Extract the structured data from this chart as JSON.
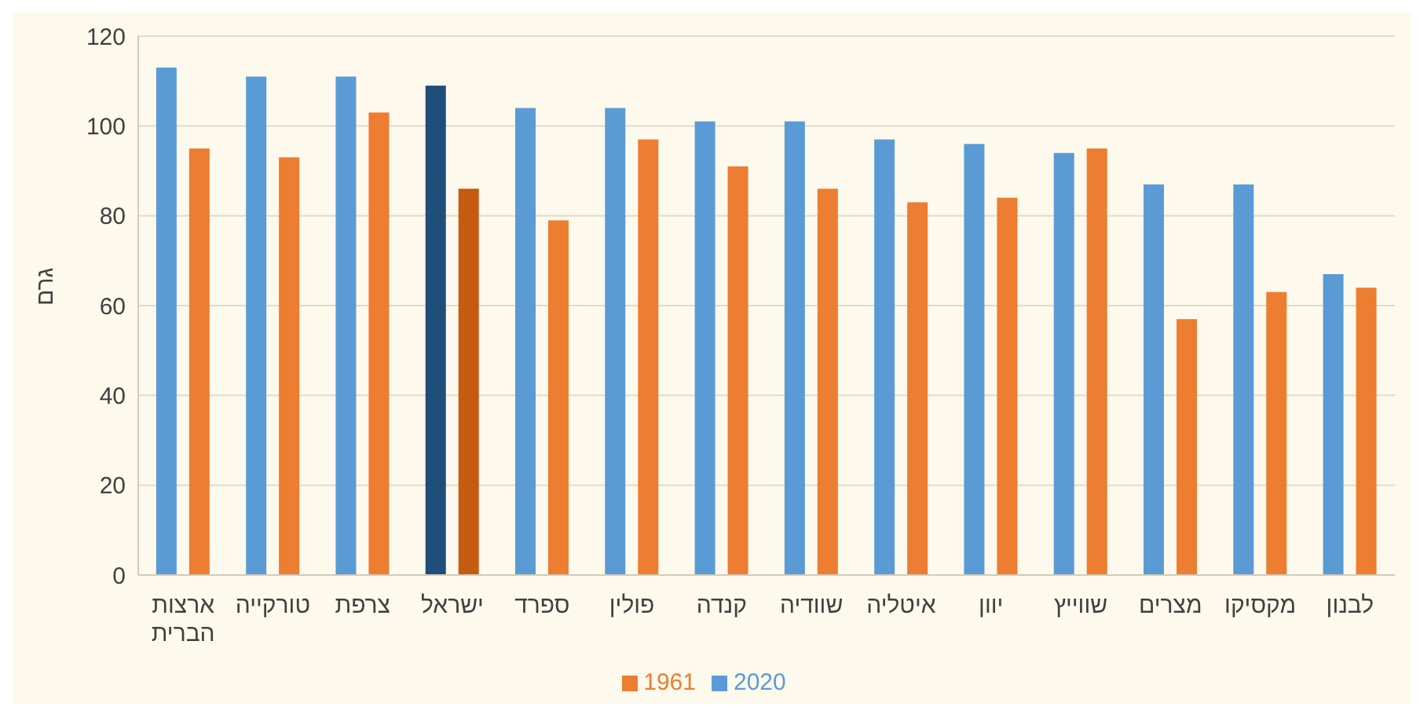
{
  "chart_data": {
    "type": "bar",
    "ylabel": "גרם",
    "categories": [
      "ארצות הברית",
      "טורקייה",
      "צרפת",
      "ישראל",
      "ספרד",
      "פולין",
      "קנדה",
      "שוודיה",
      "איטליה",
      "יוון",
      "שווייץ",
      "מצרים",
      "מקסיקו",
      "לבנון"
    ],
    "series": [
      {
        "name": "2020",
        "color": "#5b9bd5",
        "colors": [
          "#5b9bd5",
          "#5b9bd5",
          "#5b9bd5",
          "#1f4e79",
          "#5b9bd5",
          "#5b9bd5",
          "#5b9bd5",
          "#5b9bd5",
          "#5b9bd5",
          "#5b9bd5",
          "#5b9bd5",
          "#5b9bd5",
          "#5b9bd5",
          "#5b9bd5"
        ],
        "values": [
          113,
          111,
          111,
          109,
          104,
          104,
          101,
          101,
          97,
          96,
          94,
          87,
          87,
          67
        ]
      },
      {
        "name": "1961",
        "color": "#ed7d31",
        "colors": [
          "#ed7d31",
          "#ed7d31",
          "#ed7d31",
          "#c55a11",
          "#ed7d31",
          "#ed7d31",
          "#ed7d31",
          "#ed7d31",
          "#ed7d31",
          "#ed7d31",
          "#ed7d31",
          "#ed7d31",
          "#ed7d31",
          "#ed7d31"
        ],
        "values": [
          95,
          93,
          103,
          86,
          79,
          97,
          91,
          86,
          83,
          84,
          95,
          57,
          63,
          64
        ]
      }
    ],
    "ylim": [
      0,
      120
    ],
    "yticks": [
      0,
      20,
      40,
      60,
      80,
      100,
      120
    ],
    "grid": "y",
    "legend": "bottom"
  }
}
